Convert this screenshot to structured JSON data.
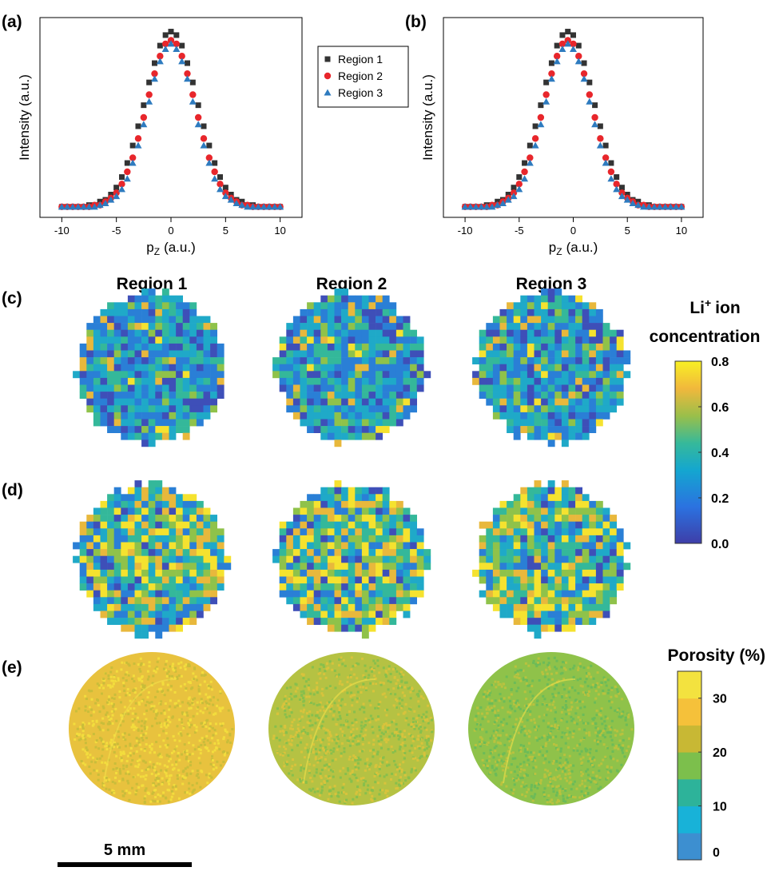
{
  "chart_data": [
    {
      "type": "scatter",
      "ylabel": "Intensity (a.u.)",
      "xlabel_parts": [
        "p",
        "Z",
        "(a.u.)"
      ],
      "xlim": [
        -12,
        12
      ],
      "ylim": [
        -0.06,
        1.08
      ],
      "xticks": [
        -10,
        -5,
        0,
        5,
        10
      ],
      "x": [
        -10,
        -9.5,
        -9,
        -8.5,
        -8,
        -7.5,
        -7,
        -6.5,
        -6,
        -5.5,
        -5,
        -4.5,
        -4,
        -3.5,
        -3,
        -2.5,
        -2,
        -1.5,
        -1,
        -0.5,
        0,
        0.5,
        1,
        1.5,
        2,
        2.5,
        3,
        3.5,
        4,
        4.5,
        5,
        5.5,
        6,
        6.5,
        7,
        7.5,
        8,
        8.5,
        9,
        9.5,
        10
      ],
      "series": [
        {
          "name": "Region 1",
          "color": "#333333",
          "marker": "square",
          "values": [
            0,
            0,
            0,
            0,
            0,
            0.01,
            0.01,
            0.03,
            0.04,
            0.07,
            0.11,
            0.17,
            0.25,
            0.35,
            0.46,
            0.58,
            0.71,
            0.82,
            0.92,
            0.98,
            1,
            0.98,
            0.92,
            0.82,
            0.71,
            0.58,
            0.46,
            0.35,
            0.25,
            0.17,
            0.11,
            0.07,
            0.04,
            0.03,
            0.01,
            0.01,
            0,
            0,
            0,
            0,
            0
          ]
        },
        {
          "name": "Region 2",
          "color": "#e8262b",
          "marker": "circle",
          "values": [
            0,
            0,
            0,
            0,
            0,
            0,
            0.01,
            0.01,
            0.03,
            0.05,
            0.08,
            0.13,
            0.2,
            0.28,
            0.39,
            0.51,
            0.64,
            0.76,
            0.86,
            0.93,
            0.95,
            0.93,
            0.86,
            0.76,
            0.64,
            0.51,
            0.39,
            0.28,
            0.2,
            0.13,
            0.08,
            0.05,
            0.03,
            0.01,
            0.01,
            0,
            0,
            0,
            0,
            0,
            0
          ]
        },
        {
          "name": "Region 3",
          "color": "#2e7bbf",
          "marker": "triangle",
          "values": [
            0,
            0,
            0,
            0,
            0,
            0,
            0,
            0.01,
            0.02,
            0.04,
            0.06,
            0.1,
            0.16,
            0.25,
            0.35,
            0.47,
            0.6,
            0.73,
            0.83,
            0.9,
            0.93,
            0.9,
            0.83,
            0.73,
            0.6,
            0.47,
            0.35,
            0.25,
            0.16,
            0.1,
            0.06,
            0.04,
            0.02,
            0.01,
            0,
            0,
            0,
            0,
            0,
            0,
            0
          ]
        }
      ]
    },
    {
      "type": "scatter",
      "ylabel": "Intensity (a.u.)",
      "xlabel_parts": [
        "p",
        "Z",
        "(a.u.)"
      ],
      "xlim": [
        -12,
        12
      ],
      "ylim": [
        -0.06,
        1.08
      ],
      "xticks": [
        -10,
        -5,
        0,
        5,
        10
      ],
      "x": [
        -10,
        -9.5,
        -9,
        -8.5,
        -8,
        -7.5,
        -7,
        -6.5,
        -6,
        -5.5,
        -5,
        -4.5,
        -4,
        -3.5,
        -3,
        -2.5,
        -2,
        -1.5,
        -1,
        -0.5,
        0,
        0.5,
        1,
        1.5,
        2,
        2.5,
        3,
        3.5,
        4,
        4.5,
        5,
        5.5,
        6,
        6.5,
        7,
        7.5,
        8,
        8.5,
        9,
        9.5,
        10
      ],
      "series": [
        {
          "color": "#333333",
          "marker": "square",
          "values": [
            0,
            0,
            0,
            0,
            0.01,
            0.01,
            0.03,
            0.04,
            0.07,
            0.11,
            0.17,
            0.25,
            0.35,
            0.46,
            0.58,
            0.71,
            0.82,
            0.92,
            0.98,
            1,
            0.98,
            0.92,
            0.82,
            0.71,
            0.58,
            0.46,
            0.35,
            0.25,
            0.17,
            0.11,
            0.07,
            0.04,
            0.03,
            0.01,
            0.01,
            0,
            0,
            0,
            0,
            0,
            0
          ]
        },
        {
          "color": "#e8262b",
          "marker": "circle",
          "values": [
            0,
            0,
            0,
            0,
            0,
            0.01,
            0.01,
            0.03,
            0.05,
            0.08,
            0.13,
            0.2,
            0.28,
            0.39,
            0.51,
            0.64,
            0.76,
            0.86,
            0.93,
            0.95,
            0.93,
            0.86,
            0.76,
            0.64,
            0.51,
            0.39,
            0.28,
            0.2,
            0.13,
            0.08,
            0.05,
            0.03,
            0.01,
            0.01,
            0,
            0,
            0,
            0,
            0,
            0,
            0
          ]
        },
        {
          "color": "#2e7bbf",
          "marker": "triangle",
          "values": [
            0,
            0,
            0,
            0,
            0,
            0,
            0.01,
            0.02,
            0.04,
            0.06,
            0.1,
            0.16,
            0.25,
            0.35,
            0.47,
            0.6,
            0.73,
            0.83,
            0.9,
            0.93,
            0.9,
            0.83,
            0.73,
            0.6,
            0.47,
            0.35,
            0.25,
            0.16,
            0.1,
            0.06,
            0.04,
            0.02,
            0.01,
            0,
            0,
            0,
            0,
            0,
            0,
            0,
            0
          ]
        }
      ]
    }
  ],
  "figure": {
    "panel_labels": [
      "(a)",
      "(b)",
      "(c)",
      "(d)",
      "(e)"
    ],
    "region_titles": [
      "Region 1",
      "Region 2",
      "Region 3"
    ],
    "concentration_colorbar": {
      "title_parts": [
        "Li",
        "+",
        "ion",
        "concentration"
      ],
      "lim": [
        0,
        0.8
      ],
      "ticks": [
        {
          "value": 0,
          "label": "0.0"
        },
        0.2,
        0.4,
        0.6,
        0.8
      ]
    },
    "porosity_colorbar": {
      "title": "Porosity (%)",
      "lim": [
        0,
        35
      ],
      "ticks": [
        0,
        10,
        20,
        30
      ],
      "colors": [
        "#3d8fd0",
        "#18b2d8",
        "#2db39a",
        "#7cbf4c",
        "#c8b834",
        "#f5c13a",
        "#f3e23f"
      ]
    },
    "scale_bar": "5 mm"
  }
}
